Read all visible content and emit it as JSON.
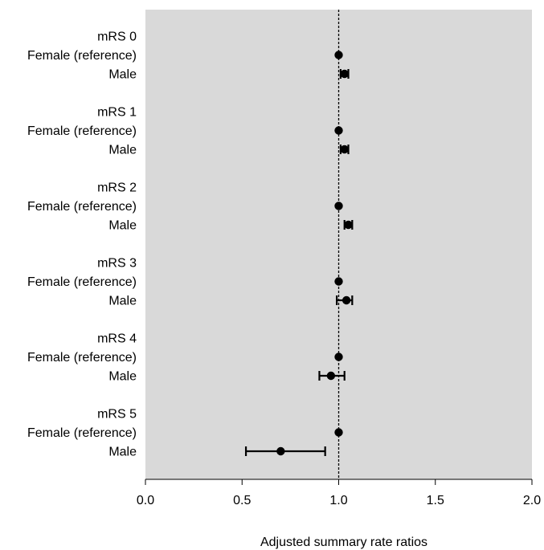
{
  "chart_data": {
    "type": "forest",
    "xlabel": "Adjusted summary rate ratios",
    "xlim": [
      0.0,
      2.0
    ],
    "xticks": [
      0.0,
      0.5,
      1.0,
      1.5,
      2.0
    ],
    "xtick_labels": [
      "0.0",
      "0.5",
      "1.0",
      "1.5",
      "2.0"
    ],
    "reference_line": 1.0,
    "background": "#d9d9d9",
    "grid": false,
    "groups": [
      {
        "label": "mRS 0",
        "rows": [
          {
            "label": "Female (reference)",
            "estimate": 1.0,
            "lower": null,
            "upper": null
          },
          {
            "label": "Male",
            "estimate": 1.03,
            "lower": 1.01,
            "upper": 1.05
          }
        ]
      },
      {
        "label": "mRS 1",
        "rows": [
          {
            "label": "Female (reference)",
            "estimate": 1.0,
            "lower": null,
            "upper": null
          },
          {
            "label": "Male",
            "estimate": 1.03,
            "lower": 1.01,
            "upper": 1.05
          }
        ]
      },
      {
        "label": "mRS 2",
        "rows": [
          {
            "label": "Female (reference)",
            "estimate": 1.0,
            "lower": null,
            "upper": null
          },
          {
            "label": "Male",
            "estimate": 1.05,
            "lower": 1.03,
            "upper": 1.07
          }
        ]
      },
      {
        "label": "mRS 3",
        "rows": [
          {
            "label": "Female (reference)",
            "estimate": 1.0,
            "lower": null,
            "upper": null
          },
          {
            "label": "Male",
            "estimate": 1.04,
            "lower": 0.99,
            "upper": 1.07
          }
        ]
      },
      {
        "label": "mRS 4",
        "rows": [
          {
            "label": "Female (reference)",
            "estimate": 1.0,
            "lower": null,
            "upper": null
          },
          {
            "label": "Male",
            "estimate": 0.96,
            "lower": 0.9,
            "upper": 1.03
          }
        ]
      },
      {
        "label": "mRS 5",
        "rows": [
          {
            "label": "Female (reference)",
            "estimate": 1.0,
            "lower": null,
            "upper": null
          },
          {
            "label": "Male",
            "estimate": 0.7,
            "lower": 0.52,
            "upper": 0.93
          }
        ]
      }
    ]
  }
}
